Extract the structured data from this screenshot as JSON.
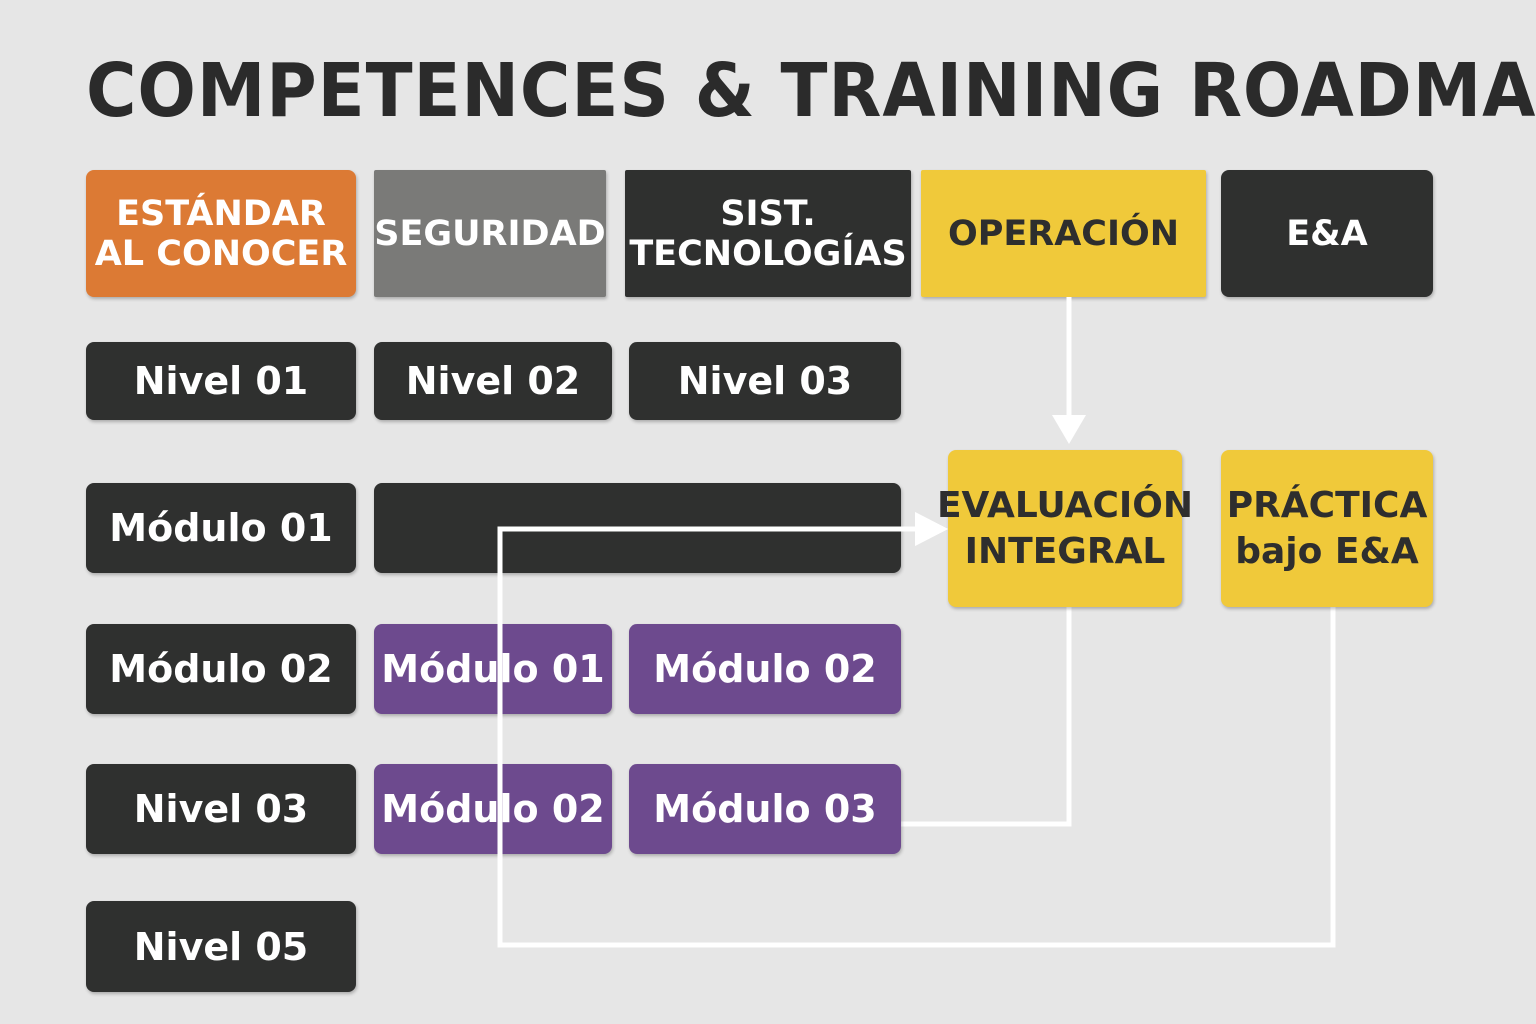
{
  "title": "COMPETENCES & TRAINING ROADMAP",
  "headers": {
    "estandar": "ESTÁNDAR\nAL CONOCER",
    "seguridad": "SEGURIDAD",
    "sist": "SIST.\nTECNOLOGÍAS",
    "operacion": "OPERACIÓN",
    "ea": "E&A"
  },
  "col1": [
    "Nivel 01",
    "Módulo 01",
    "Módulo 02",
    "Nivel 03",
    "Nivel 05"
  ],
  "col2": [
    "Nivel 02",
    "",
    "Módulo 01",
    "Módulo 02"
  ],
  "col3": [
    "Nivel 03",
    "Módulo 02",
    "Módulo 03"
  ],
  "evaluacion": "EVALUACIÓN\nINTEGRAL",
  "practica": "PRÁCTICA\nbajo E&A",
  "colors": {
    "background": "#e6e6e6",
    "dark": "#2f302f",
    "orange": "#dc7a34",
    "gray": "#7a7a78",
    "yellow": "#f0c93a",
    "purple": "#6d4a8e",
    "connector": "#ffffff"
  }
}
